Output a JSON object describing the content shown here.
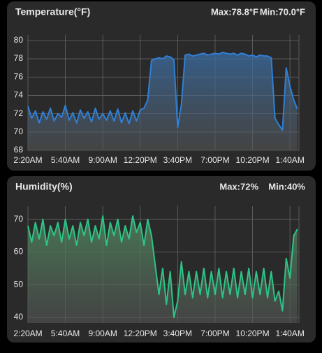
{
  "chart_data": [
    {
      "type": "area",
      "title": "Temperature(°F)",
      "annotations": [
        "Max:78.8°F",
        "Min:70.0°F"
      ],
      "categories": [
        "2:20AM",
        null,
        null,
        null,
        null,
        null,
        null,
        null,
        null,
        null,
        "5:40AM",
        null,
        null,
        null,
        null,
        null,
        null,
        null,
        null,
        null,
        "9:00AM",
        null,
        null,
        null,
        null,
        null,
        null,
        null,
        null,
        null,
        "12:20PM",
        null,
        null,
        null,
        null,
        null,
        null,
        null,
        null,
        null,
        "3:40PM",
        null,
        null,
        null,
        null,
        null,
        null,
        null,
        null,
        null,
        "7:00PM",
        null,
        null,
        null,
        null,
        null,
        null,
        null,
        null,
        null,
        "10:20PM",
        null,
        null,
        null,
        null,
        null,
        null,
        null,
        null,
        null,
        "1:40AM",
        null,
        null
      ],
      "values": [
        72.8,
        71.5,
        72.3,
        71.0,
        72.2,
        71.4,
        72.6,
        71.2,
        72.0,
        71.6,
        72.9,
        71.3,
        72.1,
        71.0,
        72.4,
        71.5,
        72.2,
        71.1,
        72.6,
        71.4,
        72.0,
        71.3,
        72.3,
        71.2,
        72.5,
        71.0,
        72.1,
        70.9,
        72.3,
        71.2,
        72.4,
        72.6,
        73.5,
        77.8,
        78.0,
        78.1,
        78.0,
        78.3,
        78.2,
        77.9,
        70.5,
        73.0,
        78.4,
        78.5,
        78.3,
        78.4,
        78.5,
        78.6,
        78.4,
        78.5,
        78.6,
        78.5,
        78.7,
        78.6,
        78.5,
        78.6,
        78.4,
        78.6,
        78.5,
        78.3,
        78.4,
        78.2,
        78.4,
        78.3,
        78.3,
        78.1,
        71.5,
        70.8,
        70.2,
        77.0,
        75.0,
        73.5,
        72.5
      ],
      "color": "#2f80d6",
      "ylim": [
        68,
        80.6
      ],
      "yticks": [
        68,
        70,
        72,
        74,
        76,
        78,
        80
      ],
      "grid": true
    },
    {
      "type": "area",
      "title": "Humidity(%)",
      "annotations": [
        "Max:72%",
        "Min:40%"
      ],
      "categories": [
        "2:20AM",
        null,
        null,
        null,
        null,
        null,
        null,
        null,
        null,
        null,
        "5:40AM",
        null,
        null,
        null,
        null,
        null,
        null,
        null,
        null,
        null,
        "9:00AM",
        null,
        null,
        null,
        null,
        null,
        null,
        null,
        null,
        null,
        "12:20PM",
        null,
        null,
        null,
        null,
        null,
        null,
        null,
        null,
        null,
        "3:40PM",
        null,
        null,
        null,
        null,
        null,
        null,
        null,
        null,
        null,
        "7:00PM",
        null,
        null,
        null,
        null,
        null,
        null,
        null,
        null,
        null,
        "10:20PM",
        null,
        null,
        null,
        null,
        null,
        null,
        null,
        null,
        null,
        "1:40AM",
        null,
        null
      ],
      "values": [
        68,
        63,
        69,
        64,
        70,
        62,
        68,
        65,
        69,
        63,
        70,
        64,
        68,
        62,
        69,
        65,
        70,
        63,
        68,
        64,
        71,
        62,
        69,
        65,
        70,
        63,
        68,
        64,
        71,
        66,
        69,
        62,
        70,
        65,
        56,
        47,
        55,
        44,
        54,
        40,
        45,
        57,
        47,
        54,
        46,
        54,
        47,
        55,
        46,
        54,
        47,
        55,
        46,
        54,
        47,
        55,
        46,
        54,
        47,
        55,
        46,
        54,
        47,
        55,
        46,
        54,
        45,
        48,
        42,
        58,
        52,
        65,
        67
      ],
      "color": "#2ec487",
      "ylim": [
        38.3,
        74
      ],
      "yticks": [
        40,
        50,
        60,
        70
      ],
      "grid": true
    }
  ]
}
